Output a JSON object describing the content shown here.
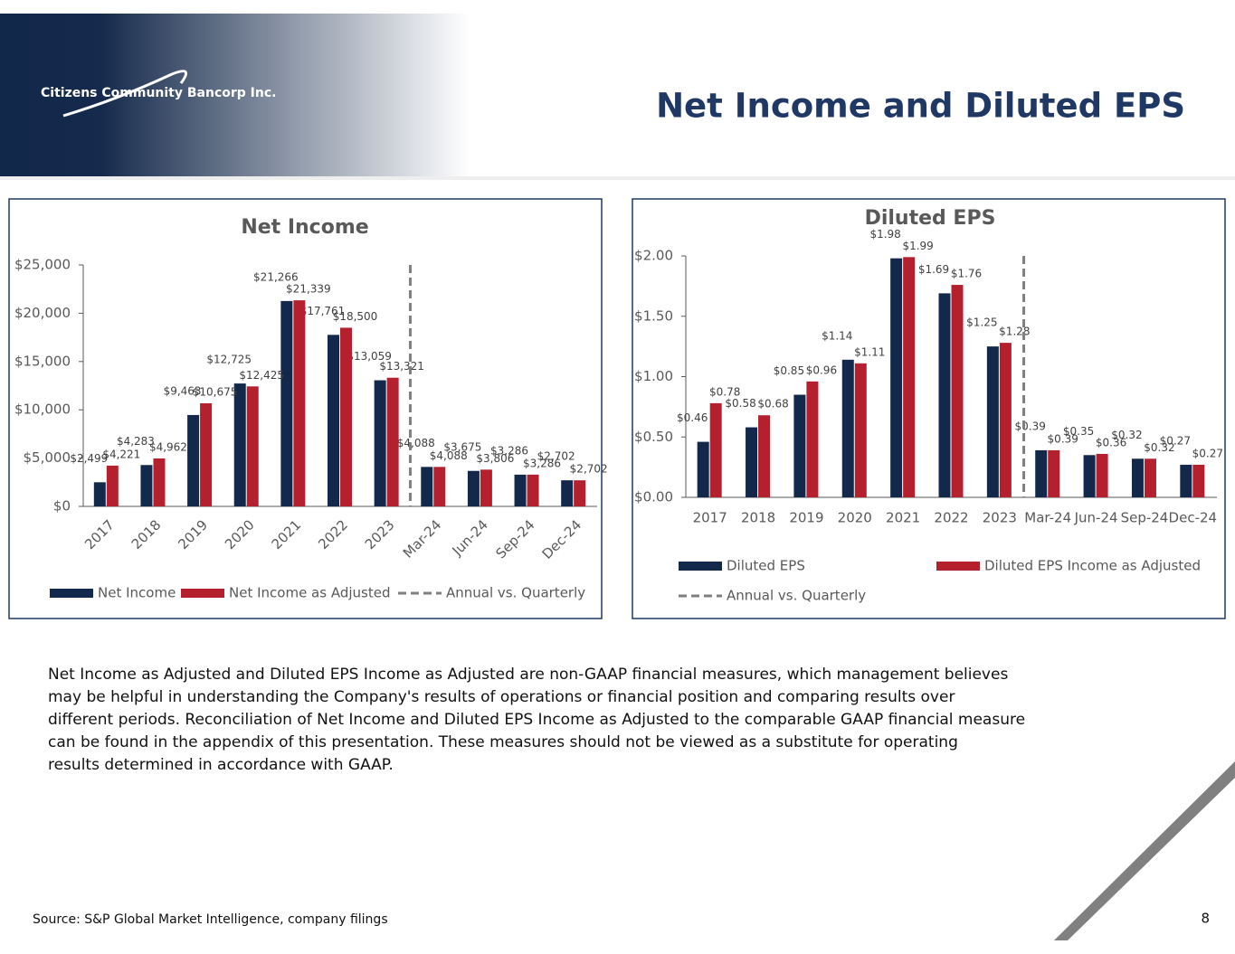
{
  "header": {
    "logo": "Citizens Community Bancorp Inc.",
    "title": "Net Income and Diluted EPS"
  },
  "chart_data": [
    {
      "type": "bar",
      "title": "Net Income",
      "categories": [
        "2017",
        "2018",
        "2019",
        "2020",
        "2021",
        "2022",
        "2023",
        "Mar-24",
        "Jun-24",
        "Sep-24",
        "Dec-24"
      ],
      "series": [
        {
          "name": "Net Income",
          "color": "#13294b",
          "values": [
            2499,
            4283,
            9463,
            12725,
            21266,
            17761,
            13059,
            4088,
            3675,
            3286,
            2702
          ],
          "value_labels": [
            "$2,499",
            "$4,283",
            "$9,463",
            "$12,725",
            "$21,266",
            "$17,761",
            "$13,059",
            "$4,088",
            "$3,675",
            "$3,286",
            "$2,702"
          ]
        },
        {
          "name": "Net Income as Adjusted",
          "color": "#b5202e",
          "values": [
            4221,
            4962,
            10675,
            12425,
            21339,
            18500,
            13321,
            4088,
            3806,
            3286,
            2702
          ],
          "value_labels": [
            "$4,221",
            "$4,962",
            "$10,675",
            "$12,425",
            "$21,339",
            "$18,500",
            "$13,321",
            "$4,088",
            "$3,806",
            "$3,286",
            "$2,702"
          ]
        }
      ],
      "divider": {
        "name": "Annual vs. Quarterly",
        "color": "#7f7f7f"
      },
      "ylim": [
        0,
        25000
      ],
      "yticks": [
        {
          "value": 0,
          "label": "$0"
        },
        {
          "value": 5000,
          "label": "$5,000"
        },
        {
          "value": 10000,
          "label": "$10,000"
        },
        {
          "value": 15000,
          "label": "$15,000"
        },
        {
          "value": 20000,
          "label": "$20,000"
        },
        {
          "value": 25000,
          "label": "$25,000"
        }
      ],
      "x_label_rotation": -45,
      "legend": "bottom",
      "grid": false
    },
    {
      "type": "bar",
      "title": "Diluted EPS",
      "categories": [
        "2017",
        "2018",
        "2019",
        "2020",
        "2021",
        "2022",
        "2023",
        "Mar-24",
        "Jun-24",
        "Sep-24",
        "Dec-24"
      ],
      "series": [
        {
          "name": "Diluted EPS",
          "color": "#13294b",
          "values": [
            0.46,
            0.58,
            0.85,
            1.14,
            1.98,
            1.69,
            1.25,
            0.39,
            0.35,
            0.32,
            0.27
          ],
          "value_labels": [
            "$0.46",
            "$0.58",
            "$0.85",
            "$1.14",
            "$1.98",
            "$1.69",
            "$1.25",
            "$0.39",
            "$0.35",
            "$0.32",
            "$0.27"
          ]
        },
        {
          "name": "Diluted EPS Income as Adjusted",
          "color": "#b5202e",
          "values": [
            0.78,
            0.68,
            0.96,
            1.11,
            1.99,
            1.76,
            1.28,
            0.39,
            0.36,
            0.32,
            0.27
          ],
          "value_labels": [
            "$0.78",
            "$0.68",
            "$0.96",
            "$1.11",
            "$1.99",
            "$1.76",
            "$1.28",
            "$0.39",
            "$0.36",
            "$0.32",
            "$0.27"
          ]
        }
      ],
      "divider": {
        "name": "Annual vs. Quarterly",
        "color": "#7f7f7f"
      },
      "ylim": [
        0,
        2
      ],
      "yticks": [
        {
          "value": 0,
          "label": "$0.00"
        },
        {
          "value": 0.5,
          "label": "$0.50"
        },
        {
          "value": 1,
          "label": "$1.00"
        },
        {
          "value": 1.5,
          "label": "$1.50"
        },
        {
          "value": 2,
          "label": "$2.00"
        }
      ],
      "x_label_rotation": 0,
      "legend": "bottom",
      "grid": false
    }
  ],
  "body": [
    "Net Income as Adjusted and Diluted EPS Income as Adjusted are non-GAAP financial measures, which management believes",
    "may be helpful in understanding the Company's results of operations or financial position and comparing results over",
    "different periods. Reconciliation of Net Income and Diluted EPS Income as Adjusted to the comparable GAAP financial measure",
    "can be found in the appendix of this presentation. These measures should not be viewed as a substitute for operating",
    "results determined in accordance with GAAP."
  ],
  "source": "Source: S&P Global Market Intelligence, company filings",
  "page_number": "8"
}
